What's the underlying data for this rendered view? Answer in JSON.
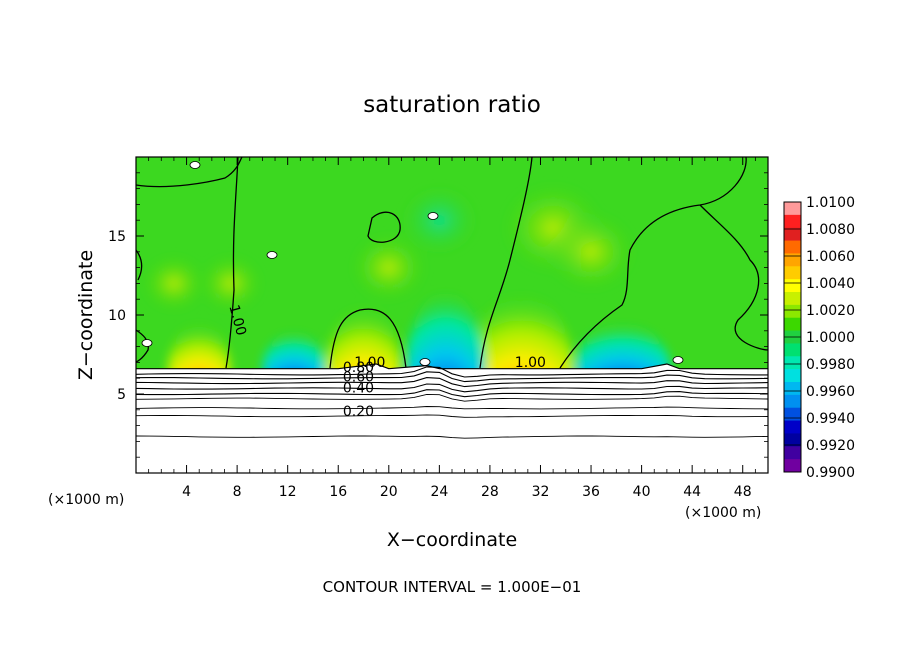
{
  "chart_data": {
    "type": "heatmap",
    "title": "saturation ratio",
    "xlabel": "X−coordinate",
    "ylabel": "Z−coordinate",
    "x_unit_label_left": "(×1000 m)",
    "x_unit_label_right": "(×1000 m)",
    "xlim": [
      0,
      50
    ],
    "ylim": [
      0,
      20
    ],
    "x_ticks": [
      4,
      8,
      12,
      16,
      20,
      24,
      28,
      32,
      36,
      40,
      44,
      48
    ],
    "y_ticks": [
      5,
      10,
      15
    ],
    "grid": false,
    "colorbar": {
      "placement": "right",
      "min": 0.99,
      "max": 1.01,
      "tick_labels": [
        "1.0100",
        "1.0080",
        "1.0060",
        "1.0040",
        "1.0020",
        "1.0000",
        "0.9980",
        "0.9960",
        "0.9940",
        "0.9920",
        "0.9900"
      ],
      "colors": [
        "#ff9a9a",
        "#ff2020",
        "#e02020",
        "#ff6a00",
        "#ffa500",
        "#ffcc00",
        "#ffff00",
        "#c8f000",
        "#8ce800",
        "#3cd800",
        "#20d040",
        "#00e070",
        "#00e8b0",
        "#00e0e0",
        "#00b8f0",
        "#0090f0",
        "#0050e0",
        "#0000c8",
        "#0000a0",
        "#4000a0",
        "#7000a0"
      ]
    },
    "surface_height": [
      [
        0,
        6.6
      ],
      [
        4,
        6.6
      ],
      [
        8,
        6.6
      ],
      [
        16,
        6.6
      ],
      [
        19,
        6.9
      ],
      [
        20,
        6.6
      ],
      [
        23,
        6.8
      ],
      [
        24,
        6.6
      ],
      [
        28,
        6.6
      ],
      [
        40,
        6.6
      ],
      [
        42,
        6.9
      ],
      [
        43,
        6.6
      ],
      [
        50,
        6.6
      ]
    ],
    "features": [
      {
        "type": "supersaturated",
        "x_center": 5,
        "x_half_width": 2.0,
        "top": 9.5
      },
      {
        "type": "supersaturated",
        "x_center": 18,
        "x_half_width": 2.4,
        "top": 10.6
      },
      {
        "type": "supersaturated",
        "x_center": 30.5,
        "x_half_width": 3.3,
        "top": 11.4
      },
      {
        "type": "subsaturated",
        "x_center": 12.5,
        "x_half_width": 2.0,
        "top": 9.0
      },
      {
        "type": "subsaturated",
        "x_center": 24.5,
        "x_half_width": 2.5,
        "top": 11.5
      },
      {
        "type": "subsaturated",
        "x_center": 38.5,
        "x_half_width": 3.0,
        "top": 9.5
      }
    ],
    "contour_labels_upper": [
      {
        "text": "1.00",
        "x": 7.7,
        "y": 9.6,
        "rotation": 75
      },
      {
        "text": "1.00",
        "x": 18.5,
        "y": 6.7
      },
      {
        "text": "1.00",
        "x": 31.2,
        "y": 6.7
      }
    ],
    "contour_labels_lower": [
      {
        "text": "0.80",
        "x": 17.6,
        "y": 6.4
      },
      {
        "text": "0.60",
        "x": 17.6,
        "y": 5.8
      },
      {
        "text": "0.40",
        "x": 17.6,
        "y": 5.1
      },
      {
        "text": "0.20",
        "x": 17.6,
        "y": 3.6
      }
    ],
    "lower_contour_levels_y": [
      6.25,
      6.0,
      5.7,
      5.35,
      5.0,
      4.7,
      4.1,
      3.6,
      2.3
    ],
    "contour_interval_text": "CONTOUR INTERVAL = 1.000E−01"
  }
}
